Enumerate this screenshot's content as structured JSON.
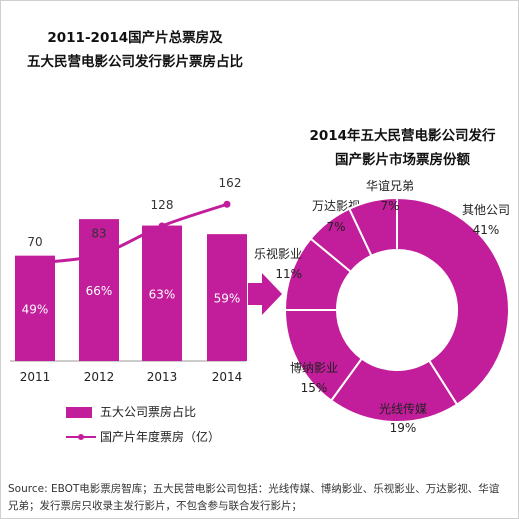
{
  "left_title": [
    "2011-2014国产片总票房及",
    "五大民营电影公司发行影片票房占比"
  ],
  "right_title": [
    "2014年五大民营电影公司发行",
    "国产影片市场票房份额"
  ],
  "legend": {
    "bars": "五大公司票房占比",
    "line": "国产片年度票房（亿）"
  },
  "source": [
    "Source: EBOT电影票房智库；五大民营电影公司包括：光线传媒、博纳影业、乐视影业、万达影视、华谊",
    "兄弟；发行票房只收录主发行影片，不包含参与联合发行影片；"
  ],
  "colors": {
    "accent": "#c21d9b",
    "text": "#222222"
  },
  "chart_data": [
    {
      "type": "bar",
      "categories": [
        "2011",
        "2012",
        "2013",
        "2014"
      ],
      "series": [
        {
          "name": "五大公司票房占比",
          "values": [
            49,
            66,
            63,
            59
          ],
          "labels": [
            "49%",
            "66%",
            "63%",
            "59%"
          ]
        },
        {
          "name": "国产片年度票房（亿）",
          "type": "line",
          "values": [
            70,
            83,
            128,
            162
          ],
          "labels": [
            "70",
            "83",
            "128",
            "162"
          ]
        }
      ]
    },
    {
      "type": "pie",
      "style": "donut",
      "slices": [
        {
          "label": "其他公司",
          "value": 41,
          "pct": "41%"
        },
        {
          "label": "光线传媒",
          "value": 19,
          "pct": "19%"
        },
        {
          "label": "博纳影业",
          "value": 15,
          "pct": "15%"
        },
        {
          "label": "乐视影业",
          "value": 11,
          "pct": "11%"
        },
        {
          "label": "万达影视",
          "value": 7,
          "pct": "7%"
        },
        {
          "label": "华谊兄弟",
          "value": 7,
          "pct": "7%"
        }
      ]
    }
  ]
}
